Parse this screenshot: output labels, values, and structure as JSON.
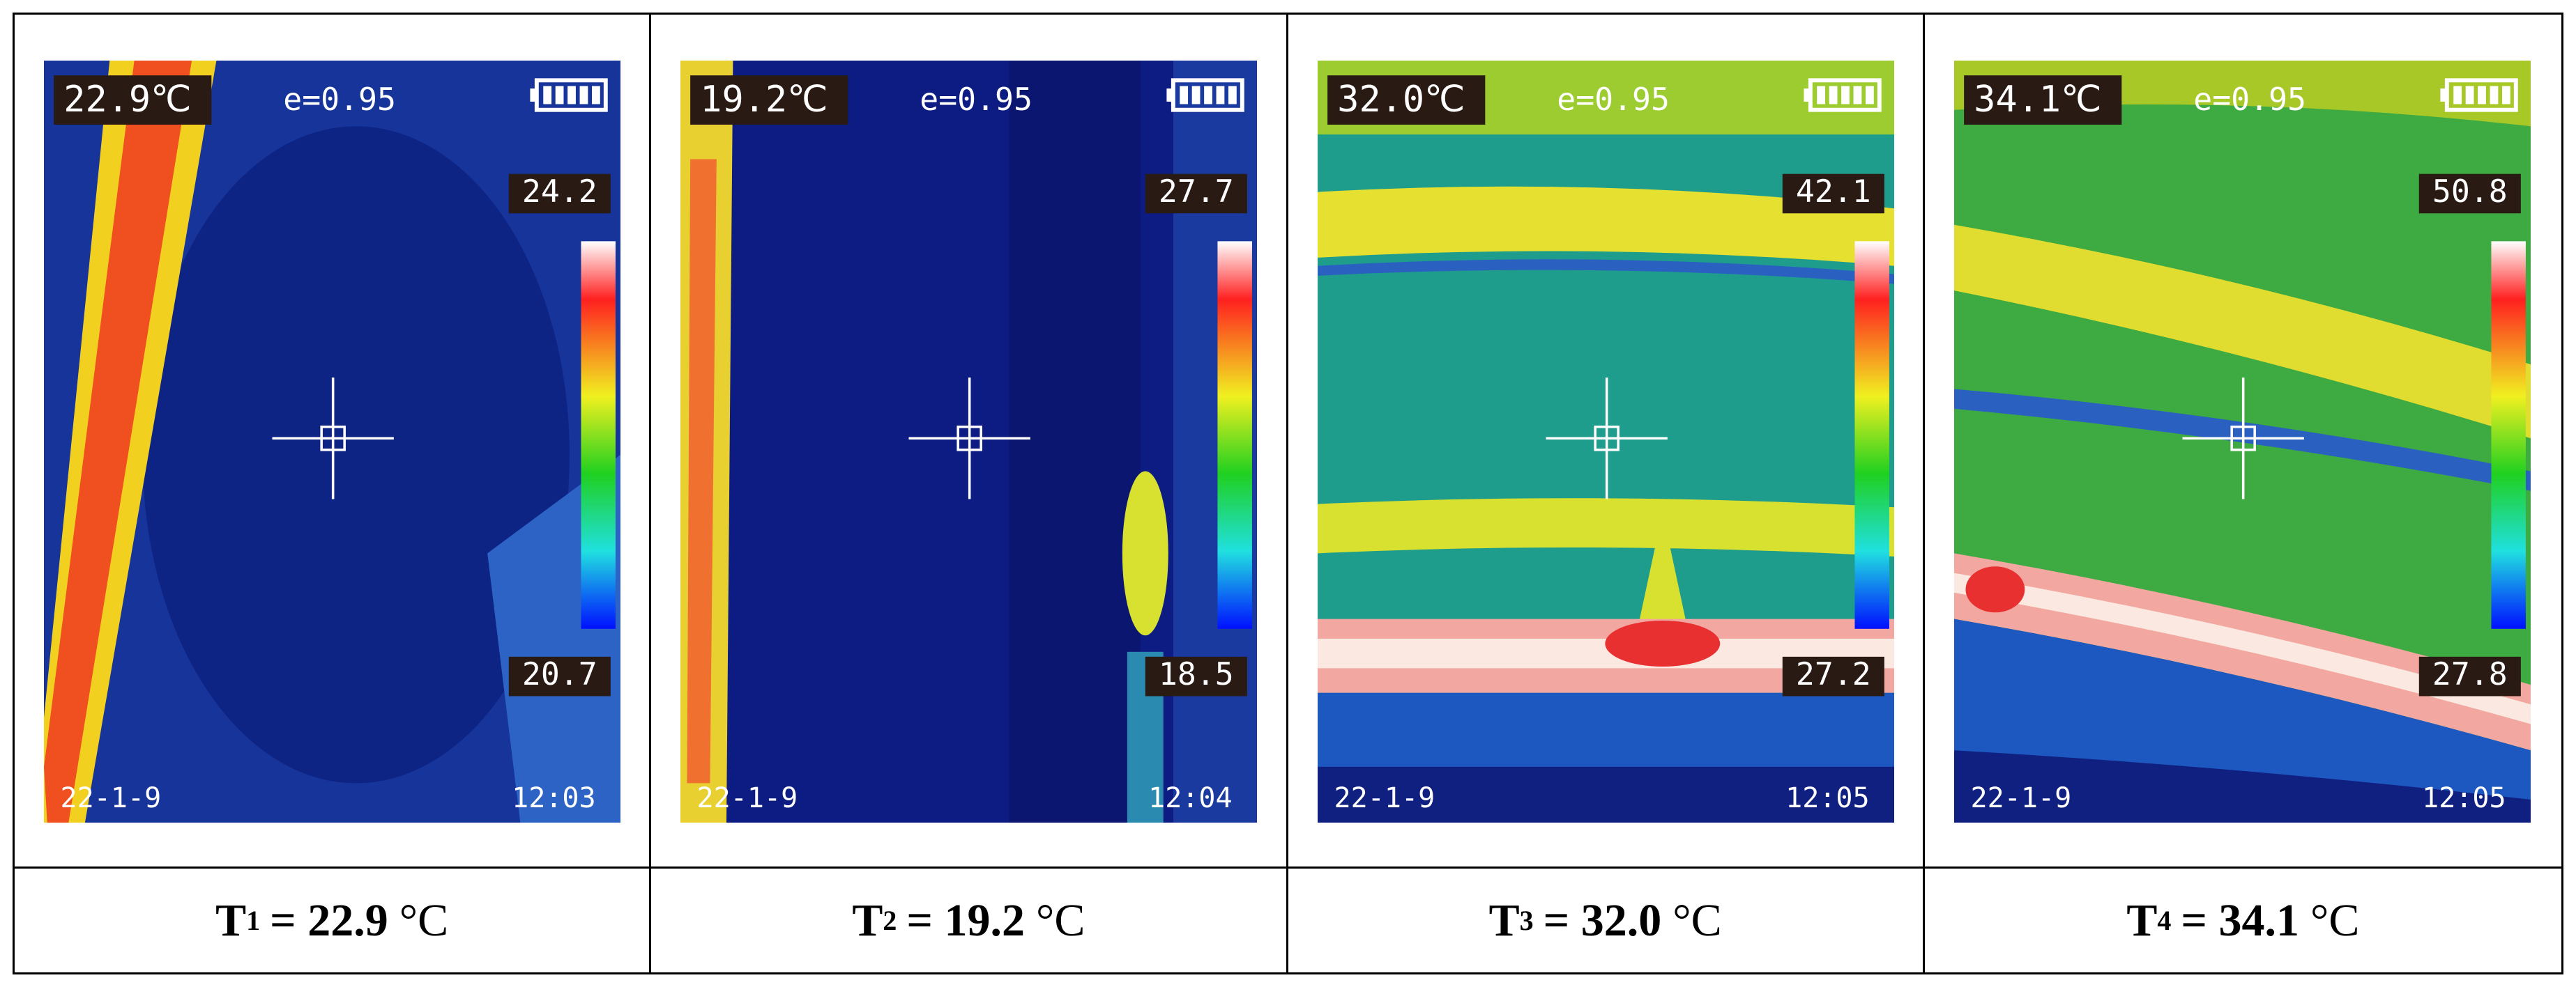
{
  "panels": [
    {
      "temperature": "22.9℃",
      "emissivity": "e=0.95",
      "max": "24.2",
      "min": "20.7",
      "date": "22-1-9",
      "time": "12:03",
      "caption": {
        "symbol": "T",
        "subscript": "1",
        "equals": "= 22.9",
        "unit": "°C"
      }
    },
    {
      "temperature": "19.2℃",
      "emissivity": "e=0.95",
      "max": "27.7",
      "min": "18.5",
      "date": "22-1-9",
      "time": "12:04",
      "caption": {
        "symbol": "T",
        "subscript": "2",
        "equals": "= 19.2",
        "unit": "°C"
      }
    },
    {
      "temperature": "32.0℃",
      "emissivity": "e=0.95",
      "max": "42.1",
      "min": "27.2",
      "date": "22-1-9",
      "time": "12:05",
      "caption": {
        "symbol": "T",
        "subscript": "3",
        "equals": "= 32.0",
        "unit": "°C"
      }
    },
    {
      "temperature": "34.1℃",
      "emissivity": "e=0.95",
      "max": "50.8",
      "min": "27.8",
      "date": "22-1-9",
      "time": "12:05",
      "caption": {
        "symbol": "T",
        "subscript": "4",
        "equals": "= 34.1",
        "unit": "°C"
      }
    }
  ]
}
